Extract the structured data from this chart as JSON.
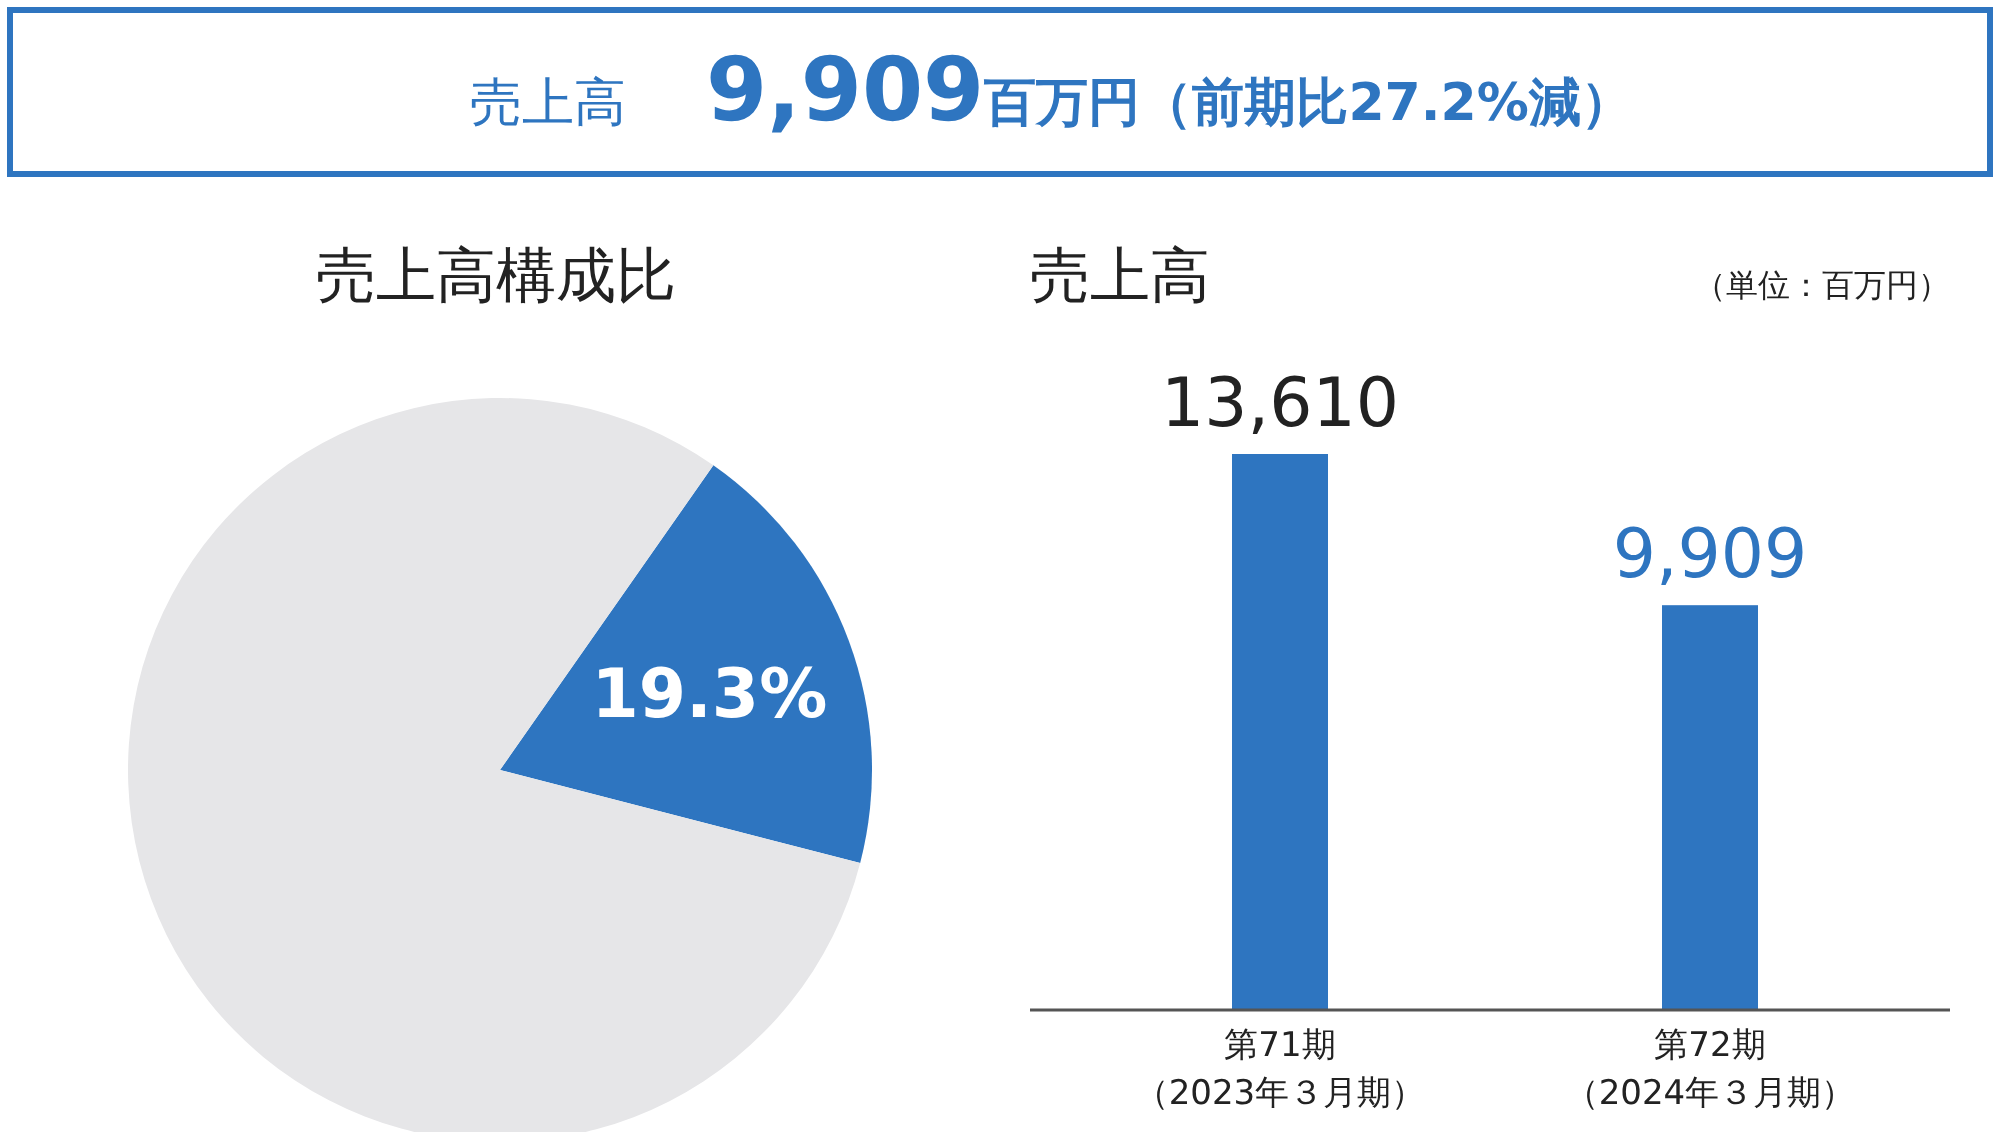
{
  "chart_data": [
    {
      "type": "other",
      "title": "売上高",
      "annotations": [
        "9,909",
        "百万円（前期比27.2%減）"
      ]
    },
    {
      "type": "pie",
      "title": "売上高構成比",
      "categories": [
        null,
        null
      ],
      "values": [
        19.3,
        80.7
      ],
      "colors": [
        "#2e75c0",
        "#e6e6e8"
      ],
      "value_labels": [
        "19.3%",
        null
      ]
    },
    {
      "type": "bar",
      "title": "売上高",
      "annotations": [
        "（単位：百万円）"
      ],
      "categories": [
        "第71期（2023年３月期）",
        "第72期（2024年３月期）"
      ],
      "values": [
        13610,
        9909
      ],
      "color": "#2e75c0",
      "value_labels": [
        "13,610",
        "9,909"
      ]
    }
  ]
}
